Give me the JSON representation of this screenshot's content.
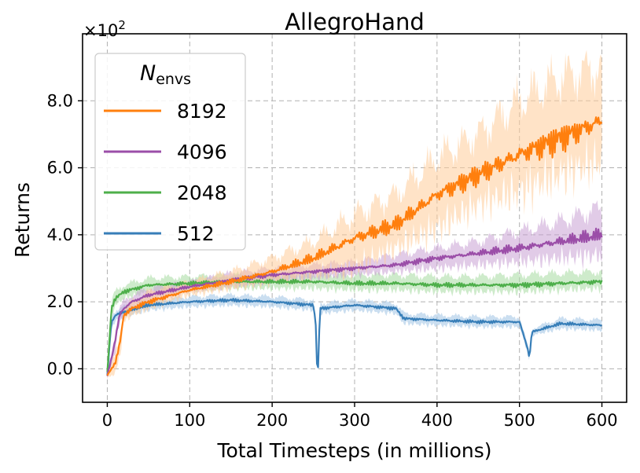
{
  "chart_data": {
    "type": "line",
    "title": "AllegroHand",
    "xlabel": "Total Timesteps (in millions)",
    "ylabel": "Returns",
    "y_multiplier_label": "×10",
    "y_multiplier_exp": "2",
    "xlim": [
      -30,
      630
    ],
    "ylim": [
      -1.0,
      10.0
    ],
    "x_ticks": [
      0,
      100,
      200,
      300,
      400,
      500,
      600
    ],
    "x_tick_labels": [
      "0",
      "100",
      "200",
      "300",
      "400",
      "500",
      "600"
    ],
    "y_ticks": [
      0.0,
      2.0,
      4.0,
      6.0,
      8.0
    ],
    "y_tick_labels": [
      "0.0",
      "2.0",
      "4.0",
      "6.0",
      "8.0"
    ],
    "grid": true,
    "legend": {
      "title_main": "N",
      "title_sub": "envs",
      "position": "top-left"
    },
    "series": [
      {
        "name": "8192",
        "color": "#ff7f0e",
        "band_color": "#ffcc99",
        "x": [
          0,
          10,
          15,
          20,
          30,
          50,
          100,
          150,
          200,
          250,
          300,
          350,
          400,
          450,
          500,
          550,
          600
        ],
        "mean": [
          -0.2,
          0.2,
          0.7,
          1.6,
          1.8,
          2.0,
          2.35,
          2.6,
          2.9,
          3.3,
          3.9,
          4.3,
          5.2,
          5.8,
          6.4,
          6.9,
          7.4
        ],
        "lower": [
          -0.3,
          -0.1,
          0.3,
          1.4,
          1.6,
          1.8,
          2.2,
          2.4,
          2.6,
          2.8,
          3.0,
          3.6,
          4.2,
          4.9,
          5.3,
          5.8,
          6.2
        ],
        "upper": [
          -0.1,
          0.4,
          1.0,
          1.8,
          2.0,
          2.3,
          2.6,
          2.9,
          3.3,
          3.8,
          4.6,
          5.2,
          6.3,
          7.0,
          8.0,
          8.7,
          9.0
        ]
      },
      {
        "name": "4096",
        "color": "#9b4ea8",
        "band_color": "#c9a0d4",
        "x": [
          0,
          5,
          10,
          15,
          20,
          30,
          50,
          100,
          150,
          200,
          250,
          300,
          350,
          400,
          450,
          500,
          550,
          600
        ],
        "mean": [
          -0.2,
          0.3,
          0.9,
          1.6,
          1.8,
          2.0,
          2.2,
          2.45,
          2.65,
          2.8,
          2.9,
          3.0,
          3.1,
          3.3,
          3.45,
          3.6,
          3.8,
          4.0
        ],
        "lower": [
          -0.3,
          0.1,
          0.6,
          1.4,
          1.6,
          1.8,
          2.0,
          2.3,
          2.45,
          2.6,
          2.7,
          2.8,
          2.9,
          3.0,
          3.1,
          3.2,
          3.3,
          3.4
        ],
        "upper": [
          -0.1,
          0.5,
          1.2,
          1.8,
          2.0,
          2.2,
          2.4,
          2.6,
          2.85,
          3.0,
          3.1,
          3.2,
          3.4,
          3.6,
          3.8,
          4.1,
          4.4,
          4.8
        ]
      },
      {
        "name": "2048",
        "color": "#4daf4a",
        "band_color": "#a6dba0",
        "x": [
          0,
          3,
          5,
          8,
          10,
          20,
          50,
          100,
          150,
          200,
          250,
          300,
          350,
          400,
          450,
          500,
          550,
          600
        ],
        "mean": [
          -0.1,
          1.0,
          1.8,
          2.0,
          2.1,
          2.3,
          2.5,
          2.55,
          2.6,
          2.6,
          2.6,
          2.55,
          2.55,
          2.5,
          2.5,
          2.5,
          2.55,
          2.6
        ],
        "lower": [
          -0.2,
          0.8,
          1.6,
          1.8,
          1.9,
          2.1,
          2.3,
          2.35,
          2.4,
          2.4,
          2.4,
          2.35,
          2.35,
          2.3,
          2.3,
          2.3,
          2.35,
          2.4
        ],
        "upper": [
          0.0,
          1.2,
          2.0,
          2.2,
          2.3,
          2.5,
          2.7,
          2.75,
          2.8,
          2.8,
          2.85,
          2.8,
          2.8,
          2.75,
          2.75,
          2.8,
          2.85,
          2.9
        ]
      },
      {
        "name": "512",
        "color": "#377eb8",
        "band_color": "#9ec3e4",
        "x": [
          0,
          3,
          5,
          10,
          20,
          50,
          100,
          150,
          200,
          250,
          253,
          255,
          258,
          300,
          350,
          360,
          400,
          450,
          500,
          510,
          512,
          515,
          550,
          600
        ],
        "mean": [
          -0.2,
          0.8,
          1.4,
          1.6,
          1.7,
          1.9,
          2.0,
          2.05,
          2.0,
          1.9,
          1.3,
          -0.5,
          1.8,
          1.9,
          1.8,
          1.5,
          1.45,
          1.4,
          1.4,
          0.6,
          0.3,
          1.1,
          1.35,
          1.3
        ],
        "lower": [
          -0.3,
          0.6,
          1.2,
          1.45,
          1.55,
          1.75,
          1.85,
          1.9,
          1.85,
          1.75,
          1.2,
          -0.5,
          1.65,
          1.75,
          1.65,
          1.35,
          1.3,
          1.25,
          1.25,
          0.5,
          0.2,
          1.0,
          1.2,
          1.15
        ],
        "upper": [
          -0.1,
          1.0,
          1.6,
          1.75,
          1.85,
          2.05,
          2.15,
          2.2,
          2.15,
          2.05,
          1.4,
          -0.4,
          1.95,
          2.05,
          1.95,
          1.65,
          1.6,
          1.55,
          1.55,
          0.7,
          0.4,
          1.2,
          1.5,
          1.45
        ]
      }
    ]
  }
}
